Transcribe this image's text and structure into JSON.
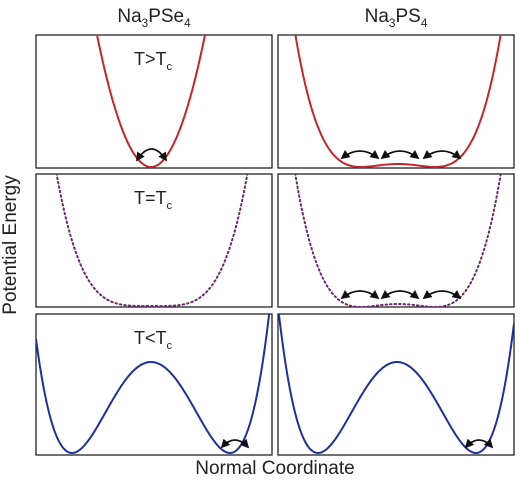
{
  "columns": [
    {
      "title": [
        "Na",
        "3",
        "PSe",
        "4"
      ]
    },
    {
      "title": [
        "Na",
        "3",
        "PS",
        "4"
      ]
    }
  ],
  "rows": [
    {
      "label": [
        "T>T",
        "c"
      ]
    },
    {
      "label": [
        "T=T",
        "c"
      ]
    },
    {
      "label": [
        "T<T",
        "c"
      ]
    }
  ],
  "y_axis_label": "Potential Energy",
  "x_axis_label": "Normal Coordinate"
}
